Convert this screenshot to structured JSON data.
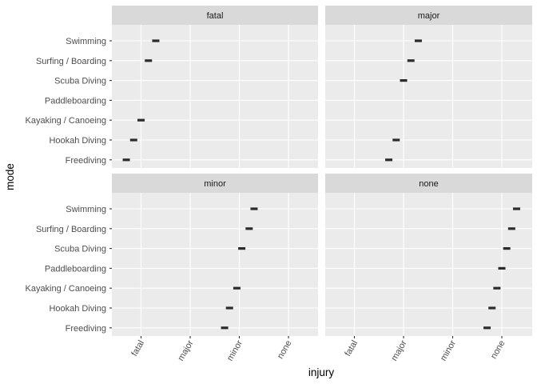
{
  "chart_data": {
    "type": "scatter",
    "facet_by": "injury",
    "facets": [
      "fatal",
      "major",
      "minor",
      "none"
    ],
    "xlabel": "injury",
    "ylabel": "mode",
    "x_categories": [
      "fatal",
      "major",
      "minor",
      "none"
    ],
    "y_categories": [
      "Swimming",
      "Surfing / Boarding",
      "Scuba Diving",
      "Paddleboarding",
      "Kayaking / Canoeing",
      "Hookah Diving",
      "Freediving"
    ],
    "grid": true,
    "panels": [
      {
        "facet": "fatal",
        "points": [
          {
            "mode": "Swimming",
            "x": 1.3
          },
          {
            "mode": "Surfing / Boarding",
            "x": 1.15
          },
          {
            "mode": "Kayaking / Canoeing",
            "x": 1.0
          },
          {
            "mode": "Hookah Diving",
            "x": 0.85
          },
          {
            "mode": "Freediving",
            "x": 0.7
          }
        ]
      },
      {
        "facet": "major",
        "points": [
          {
            "mode": "Swimming",
            "x": 2.3
          },
          {
            "mode": "Surfing / Boarding",
            "x": 2.15
          },
          {
            "mode": "Scuba Diving",
            "x": 2.0
          },
          {
            "mode": "Hookah Diving",
            "x": 1.85
          },
          {
            "mode": "Freediving",
            "x": 1.7
          }
        ]
      },
      {
        "facet": "minor",
        "points": [
          {
            "mode": "Swimming",
            "x": 3.3
          },
          {
            "mode": "Surfing / Boarding",
            "x": 3.2
          },
          {
            "mode": "Scuba Diving",
            "x": 3.05
          },
          {
            "mode": "Kayaking / Canoeing",
            "x": 2.95
          },
          {
            "mode": "Hookah Diving",
            "x": 2.8
          },
          {
            "mode": "Freediving",
            "x": 2.7
          }
        ]
      },
      {
        "facet": "none",
        "points": [
          {
            "mode": "Swimming",
            "x": 4.3
          },
          {
            "mode": "Surfing / Boarding",
            "x": 4.2
          },
          {
            "mode": "Scuba Diving",
            "x": 4.1
          },
          {
            "mode": "Paddleboarding",
            "x": 4.0
          },
          {
            "mode": "Kayaking / Canoeing",
            "x": 3.9
          },
          {
            "mode": "Hookah Diving",
            "x": 3.8
          },
          {
            "mode": "Freediving",
            "x": 3.7
          }
        ]
      }
    ]
  }
}
